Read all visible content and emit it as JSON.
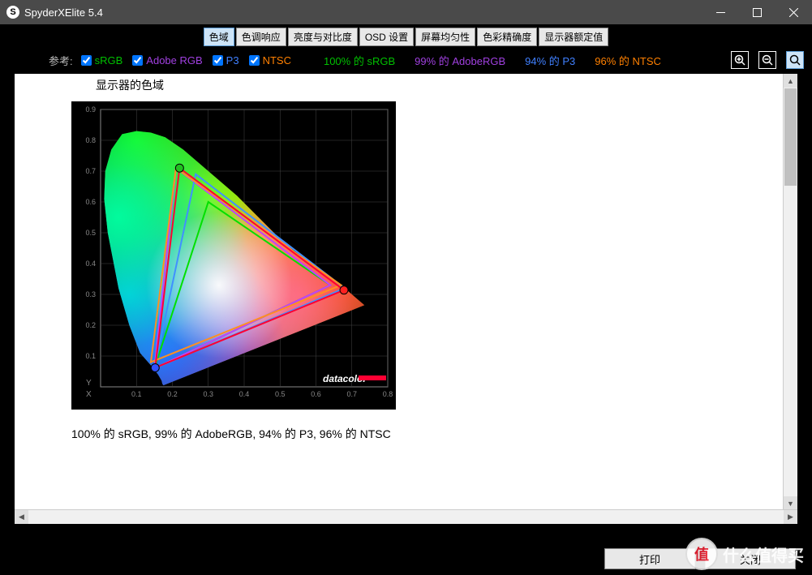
{
  "window": {
    "title": "SpyderXElite 5.4",
    "icon_letter": "S"
  },
  "tabs": [
    {
      "label": "色域",
      "active": true
    },
    {
      "label": "色调响应",
      "active": false
    },
    {
      "label": "亮度与对比度",
      "active": false
    },
    {
      "label": "OSD 设置",
      "active": false
    },
    {
      "label": "屏幕均匀性",
      "active": false
    },
    {
      "label": "色彩精确度",
      "active": false
    },
    {
      "label": "显示器额定值",
      "active": false
    }
  ],
  "ref": {
    "label": "参考:",
    "checks": [
      {
        "label": "sRGB",
        "color": "#00c000",
        "checked": true
      },
      {
        "label": "Adobe RGB",
        "color": "#a040e0",
        "checked": true
      },
      {
        "label": "P3",
        "color": "#4080ff",
        "checked": true
      },
      {
        "label": "NTSC",
        "color": "#ff8000",
        "checked": true
      }
    ],
    "stats": [
      {
        "label": "100% 的 sRGB",
        "color": "#00c000"
      },
      {
        "label": "99% 的 AdobeRGB",
        "color": "#a040e0"
      },
      {
        "label": "94% 的 P3",
        "color": "#4080ff"
      },
      {
        "label": "96% 的 NTSC",
        "color": "#ff8000"
      }
    ]
  },
  "section_title": "显示器的色域",
  "summary": "100% 的 sRGB, 99% 的 AdobeRGB, 94% 的 P3, 96% 的 NTSC",
  "buttons": {
    "print": "打印",
    "close": "关闭"
  },
  "watermark": "什么值得买",
  "chart": {
    "bg": "#000000",
    "plot_bg": "#000000",
    "grid_color": "#444444",
    "axis_color": "#888888",
    "label_color": "#888888",
    "logo_text": "datacolor",
    "logo_color": "#ffffff",
    "logo_bar_color": "#ff0033",
    "xlim": [
      0.0,
      0.8
    ],
    "ylim": [
      0.0,
      0.9
    ],
    "tick_step": 0.1,
    "xlabel": "X",
    "ylabel": "Y",
    "xticks": [
      "0.1",
      "0.2",
      "0.3",
      "0.4",
      "0.5",
      "0.6",
      "0.7",
      "0.8"
    ],
    "yticks": [
      "0.1",
      "0.2",
      "0.3",
      "0.4",
      "0.5",
      "0.6",
      "0.7",
      "0.8",
      "0.9"
    ],
    "spectral_locus": [
      [
        0.175,
        0.005
      ],
      [
        0.172,
        0.01
      ],
      [
        0.17,
        0.02
      ],
      [
        0.16,
        0.04
      ],
      [
        0.14,
        0.07
      ],
      [
        0.11,
        0.11
      ],
      [
        0.08,
        0.2
      ],
      [
        0.05,
        0.32
      ],
      [
        0.02,
        0.5
      ],
      [
        0.01,
        0.61
      ],
      [
        0.013,
        0.7
      ],
      [
        0.03,
        0.77
      ],
      [
        0.06,
        0.82
      ],
      [
        0.1,
        0.83
      ],
      [
        0.14,
        0.825
      ],
      [
        0.18,
        0.81
      ],
      [
        0.23,
        0.77
      ],
      [
        0.28,
        0.72
      ],
      [
        0.33,
        0.67
      ],
      [
        0.38,
        0.62
      ],
      [
        0.44,
        0.55
      ],
      [
        0.5,
        0.48
      ],
      [
        0.56,
        0.42
      ],
      [
        0.62,
        0.37
      ],
      [
        0.68,
        0.32
      ],
      [
        0.72,
        0.28
      ],
      [
        0.735,
        0.265
      ]
    ],
    "monitor": {
      "color": "#ff0033",
      "width": 2,
      "pts": [
        [
          0.678,
          0.314
        ],
        [
          0.22,
          0.71
        ],
        [
          0.152,
          0.062
        ]
      ]
    },
    "gamuts": [
      {
        "name": "sRGB",
        "color": "#00e000",
        "width": 2,
        "pts": [
          [
            0.64,
            0.33
          ],
          [
            0.3,
            0.6
          ],
          [
            0.15,
            0.06
          ]
        ]
      },
      {
        "name": "AdobeRGB",
        "color": "#c040ff",
        "width": 2,
        "pts": [
          [
            0.64,
            0.33
          ],
          [
            0.21,
            0.71
          ],
          [
            0.15,
            0.06
          ]
        ]
      },
      {
        "name": "P3",
        "color": "#4090ff",
        "width": 2,
        "pts": [
          [
            0.68,
            0.32
          ],
          [
            0.265,
            0.69
          ],
          [
            0.15,
            0.06
          ]
        ]
      },
      {
        "name": "NTSC",
        "color": "#ff9020",
        "width": 2,
        "pts": [
          [
            0.67,
            0.33
          ],
          [
            0.21,
            0.71
          ],
          [
            0.14,
            0.08
          ]
        ]
      }
    ],
    "vertex_markers": [
      {
        "x": 0.678,
        "y": 0.314,
        "color": "#ff2020"
      },
      {
        "x": 0.22,
        "y": 0.71,
        "color": "#20c020"
      },
      {
        "x": 0.152,
        "y": 0.062,
        "color": "#3050ff"
      }
    ]
  }
}
